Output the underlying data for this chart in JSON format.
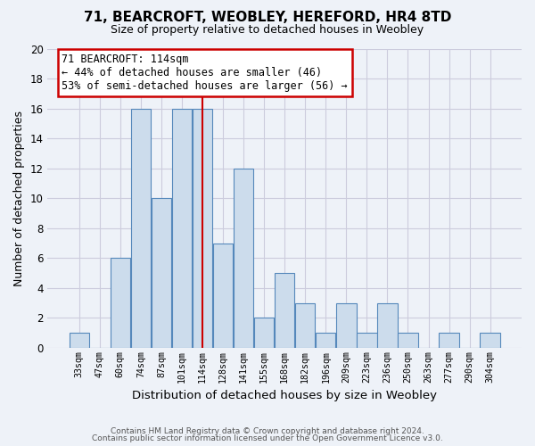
{
  "title": "71, BEARCROFT, WEOBLEY, HEREFORD, HR4 8TD",
  "subtitle": "Size of property relative to detached houses in Weobley",
  "xlabel": "Distribution of detached houses by size in Weobley",
  "ylabel": "Number of detached properties",
  "footer_lines": [
    "Contains HM Land Registry data © Crown copyright and database right 2024.",
    "Contains public sector information licensed under the Open Government Licence v3.0."
  ],
  "bin_labels": [
    "33sqm",
    "47sqm",
    "60sqm",
    "74sqm",
    "87sqm",
    "101sqm",
    "114sqm",
    "128sqm",
    "141sqm",
    "155sqm",
    "168sqm",
    "182sqm",
    "196sqm",
    "209sqm",
    "223sqm",
    "236sqm",
    "250sqm",
    "263sqm",
    "277sqm",
    "290sqm",
    "304sqm"
  ],
  "bar_heights": [
    1,
    0,
    6,
    16,
    10,
    16,
    16,
    7,
    12,
    2,
    5,
    3,
    1,
    3,
    1,
    3,
    1,
    0,
    1,
    0,
    1
  ],
  "highlight_index": 6,
  "bar_color": "#ccdcec",
  "bar_edge_color": "#5588bb",
  "highlight_line_color": "#cc0000",
  "annotation_text": "71 BEARCROFT: 114sqm\n← 44% of detached houses are smaller (46)\n53% of semi-detached houses are larger (56) →",
  "annotation_box_facecolor": "#ffffff",
  "annotation_box_edgecolor": "#cc0000",
  "ylim": [
    0,
    20
  ],
  "yticks": [
    0,
    2,
    4,
    6,
    8,
    10,
    12,
    14,
    16,
    18,
    20
  ],
  "grid_color": "#ccccdd",
  "background_color": "#eef2f8",
  "title_fontsize": 11,
  "subtitle_fontsize": 9
}
